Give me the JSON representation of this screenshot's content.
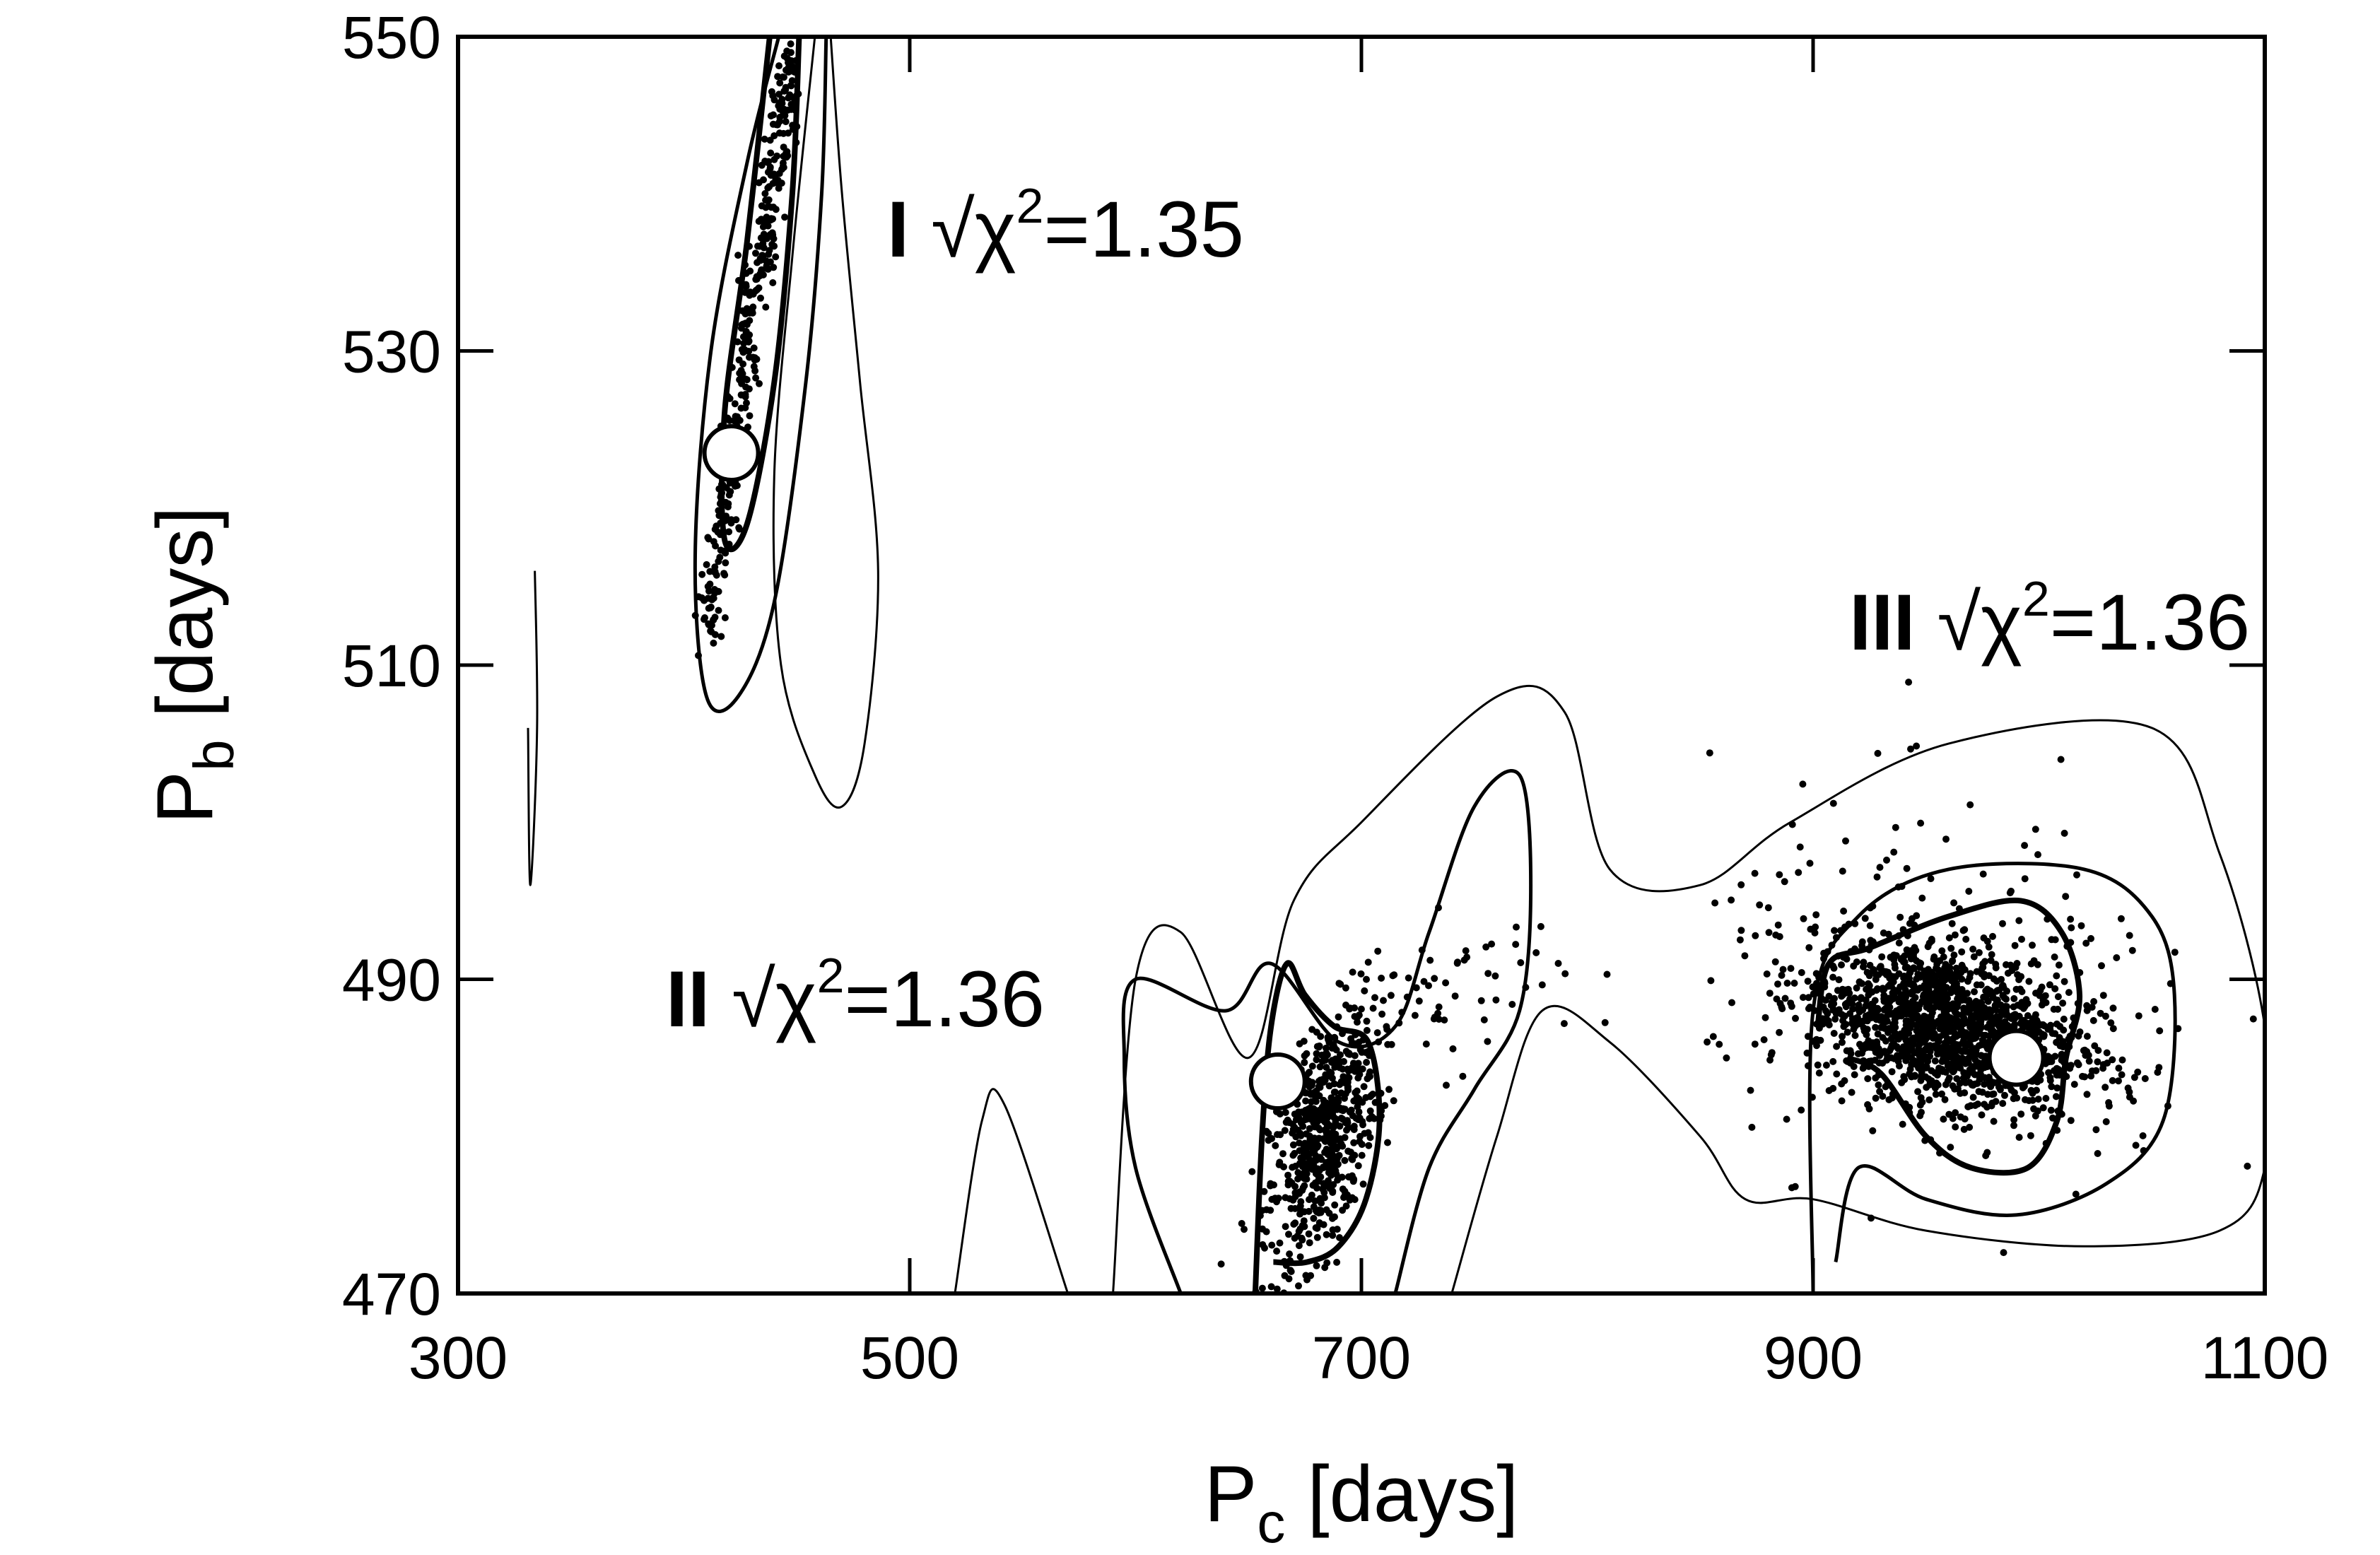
{
  "chart_data": {
    "type": "scatter",
    "xlabel": {
      "main": "P",
      "sub": "c",
      "unit": " [days]"
    },
    "ylabel": {
      "main": "P",
      "sub": "b",
      "unit": " [days]"
    },
    "xlim": [
      300,
      1100
    ],
    "ylim": [
      470,
      550
    ],
    "xticks": [
      300,
      500,
      700,
      900,
      1100
    ],
    "yticks": [
      470,
      490,
      510,
      530,
      550
    ],
    "grid": false,
    "legend": "none",
    "colors": {
      "ink": "#000000",
      "marker_fill": "#ffffff"
    },
    "annotations": [
      {
        "roman": "I",
        "sqrt": "√",
        "chi": "χ",
        "sup": "2",
        "eq": "=",
        "value": "1.35",
        "x": 490,
        "y": 536
      },
      {
        "roman": "II",
        "sqrt": "√",
        "chi": "χ",
        "sup": "2",
        "eq": "=",
        "value": "1.36",
        "x": 392,
        "y": 487
      },
      {
        "roman": "III",
        "sqrt": "√",
        "chi": "χ",
        "sup": "2",
        "eq": "=",
        "value": "1.36",
        "x": 916,
        "y": 511
      }
    ],
    "best_fits": [
      {
        "id": "I",
        "x": 421,
        "y": 523.5
      },
      {
        "id": "II",
        "x": 663,
        "y": 483.5
      },
      {
        "id": "III",
        "x": 990,
        "y": 485
      }
    ],
    "sample_clusters": [
      {
        "id": "I",
        "type": "strip",
        "n": 380,
        "x0": 410,
        "y0": 512,
        "x1": 448,
        "y1": 549,
        "width": 6
      },
      {
        "id": "II",
        "type": "blob",
        "n": 650,
        "cx": 683,
        "cy": 480,
        "sx": 12,
        "sy": 4.2,
        "rho": 0.55
      },
      {
        "id": "II-ext",
        "type": "blob",
        "n": 60,
        "cx": 740,
        "cy": 489,
        "sx": 25,
        "sy": 2.5,
        "rho": 0.3
      },
      {
        "id": "III",
        "type": "blob",
        "n": 1500,
        "cx": 958,
        "cy": 487,
        "sx": 30,
        "sy": 2.6,
        "rho": -0.3
      },
      {
        "id": "III-halo",
        "type": "blob",
        "n": 220,
        "cx": 965,
        "cy": 489,
        "sx": 55,
        "sy": 6,
        "rho": -0.2
      }
    ],
    "contours": [
      {
        "level": "outer",
        "stroke": 3,
        "points": [
          [
            465,
            550
          ],
          [
            470,
            540
          ],
          [
            478,
            528
          ],
          [
            486,
            516
          ],
          [
            480,
            505
          ],
          [
            470,
            501
          ],
          [
            458,
            503
          ],
          [
            443,
            510
          ],
          [
            440,
            522
          ],
          [
            448,
            536
          ],
          [
            458,
            550
          ]
        ]
      },
      {
        "level": "middle",
        "stroke": 5,
        "points": [
          [
            463,
            550
          ],
          [
            461,
            540
          ],
          [
            454,
            528
          ],
          [
            440,
            514
          ],
          [
            424,
            508
          ],
          [
            410,
            508
          ],
          [
            405,
            517
          ],
          [
            412,
            530
          ],
          [
            428,
            542
          ],
          [
            442,
            550
          ]
        ]
      },
      {
        "level": "inner",
        "stroke": 8,
        "points": [
          [
            451,
            550
          ],
          [
            448,
            540
          ],
          [
            440,
            528
          ],
          [
            428,
            519
          ],
          [
            418,
            518
          ],
          [
            418,
            526
          ],
          [
            428,
            537
          ],
          [
            438,
            550
          ]
        ]
      },
      {
        "level": "sliver",
        "stroke": 3,
        "points": [
          [
            334,
            516
          ],
          [
            335,
            506
          ],
          [
            332,
            496
          ],
          [
            331,
            506
          ]
        ]
      },
      {
        "level": "outer-lobe",
        "stroke": 3,
        "points": [
          [
            520,
            470
          ],
          [
            532,
            481
          ],
          [
            542,
            482
          ],
          [
            570,
            470
          ]
        ]
      },
      {
        "level": "outer",
        "stroke": 3,
        "points": [
          [
            590,
            470
          ],
          [
            600,
            490
          ],
          [
            620,
            493
          ],
          [
            650,
            485
          ],
          [
            670,
            495
          ],
          [
            700,
            500
          ],
          [
            760,
            508
          ],
          [
            790,
            507
          ],
          [
            810,
            497
          ],
          [
            850,
            496
          ],
          [
            890,
            500
          ],
          [
            960,
            505
          ],
          [
            1050,
            506
          ],
          [
            1080,
            498
          ],
          [
            1100,
            487
          ],
          [
            1100,
            478
          ],
          [
            1080,
            474
          ],
          [
            1020,
            473
          ],
          [
            950,
            474
          ],
          [
            900,
            476
          ],
          [
            870,
            476
          ],
          [
            850,
            480
          ],
          [
            810,
            486
          ],
          [
            780,
            488
          ],
          [
            760,
            480
          ],
          [
            740,
            470
          ]
        ]
      },
      {
        "level": "middle",
        "stroke": 5,
        "points": [
          [
            620,
            470
          ],
          [
            600,
            478
          ],
          [
            595,
            485
          ],
          [
            600,
            490
          ],
          [
            640,
            488
          ],
          [
            660,
            491
          ],
          [
            690,
            486
          ],
          [
            715,
            487
          ],
          [
            730,
            493
          ],
          [
            750,
            501
          ],
          [
            770,
            503
          ],
          [
            775,
            496
          ],
          [
            770,
            488
          ],
          [
            750,
            483
          ],
          [
            730,
            478
          ],
          [
            715,
            470
          ]
        ]
      },
      {
        "level": "middle-III",
        "stroke": 5,
        "points": [
          [
            900,
            470
          ],
          [
            900,
            488
          ],
          [
            920,
            494
          ],
          [
            960,
            497
          ],
          [
            1020,
            497
          ],
          [
            1050,
            494
          ],
          [
            1060,
            489
          ],
          [
            1055,
            481
          ],
          [
            1030,
            477
          ],
          [
            990,
            475
          ],
          [
            950,
            476
          ],
          [
            920,
            478
          ],
          [
            910,
            472
          ]
        ]
      },
      {
        "level": "inner-II",
        "stroke": 8,
        "points": [
          [
            653,
            470
          ],
          [
            656,
            480
          ],
          [
            660,
            487
          ],
          [
            667,
            491
          ],
          [
            675,
            489
          ],
          [
            688,
            487
          ],
          [
            703,
            486
          ],
          [
            708,
            481
          ],
          [
            702,
            476
          ],
          [
            690,
            473
          ],
          [
            676,
            472
          ],
          [
            661,
            472
          ]
        ]
      },
      {
        "level": "inner-III",
        "stroke": 8,
        "points": [
          [
            902,
            487
          ],
          [
            907,
            491
          ],
          [
            925,
            492
          ],
          [
            960,
            494
          ],
          [
            992,
            495
          ],
          [
            1010,
            493
          ],
          [
            1018,
            489
          ],
          [
            1012,
            485
          ],
          [
            1008,
            481
          ],
          [
            995,
            478
          ],
          [
            970,
            478
          ],
          [
            950,
            480
          ],
          [
            930,
            484
          ],
          [
            915,
            485
          ]
        ]
      }
    ]
  }
}
